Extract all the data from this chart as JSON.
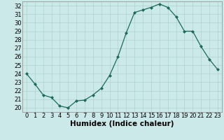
{
  "x": [
    0,
    1,
    2,
    3,
    4,
    5,
    6,
    7,
    8,
    9,
    10,
    11,
    12,
    13,
    14,
    15,
    16,
    17,
    18,
    19,
    20,
    21,
    22,
    23
  ],
  "y": [
    24.0,
    22.8,
    21.5,
    21.2,
    20.2,
    20.0,
    20.8,
    20.9,
    21.5,
    22.3,
    23.8,
    26.0,
    28.8,
    31.2,
    31.5,
    31.8,
    32.2,
    31.8,
    30.7,
    29.0,
    29.0,
    27.2,
    25.7,
    24.5
  ],
  "xlabel": "Humidex (Indice chaleur)",
  "xlim": [
    -0.5,
    23.5
  ],
  "ylim": [
    19.5,
    32.5
  ],
  "yticks": [
    20,
    21,
    22,
    23,
    24,
    25,
    26,
    27,
    28,
    29,
    30,
    31,
    32
  ],
  "xticks": [
    0,
    1,
    2,
    3,
    4,
    5,
    6,
    7,
    8,
    9,
    10,
    11,
    12,
    13,
    14,
    15,
    16,
    17,
    18,
    19,
    20,
    21,
    22,
    23
  ],
  "xtick_labels": [
    "0",
    "1",
    "2",
    "3",
    "4",
    "5",
    "6",
    "7",
    "8",
    "9",
    "10",
    "11",
    "12",
    "13",
    "14",
    "15",
    "16",
    "17",
    "18",
    "19",
    "20",
    "21",
    "22",
    "23"
  ],
  "line_color": "#1a6b5a",
  "marker": "D",
  "marker_size": 2.0,
  "bg_color": "#cce9e9",
  "grid_color": "#b0d0d0",
  "xlabel_fontsize": 7.5,
  "tick_fontsize": 6.0
}
